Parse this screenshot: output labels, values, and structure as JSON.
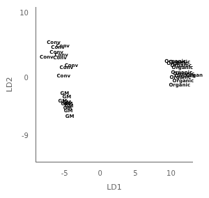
{
  "chart_data": {
    "type": "scatter",
    "marker": "text",
    "xlabel": "LD1",
    "ylabel": "LD2",
    "xlim": [
      -9,
      13
    ],
    "ylim": [
      -13,
      11
    ],
    "xticks": [
      -5,
      0,
      5,
      10
    ],
    "yticks": [
      -9,
      0,
      10
    ],
    "grid": false,
    "series": [
      {
        "labels": [
          "Conv",
          "Conv",
          "Conv",
          "Conv",
          "Conv",
          "Conv",
          "Conv",
          "Conv",
          "Conv",
          "Conv"
        ],
        "x": [
          -8.5,
          -7.5,
          -7.1,
          -6.9,
          -6.6,
          -6.4,
          -6.2,
          -5.7,
          -6.1,
          -5.0
        ],
        "values": [
          3.2,
          5.5,
          4.0,
          4.7,
          3.1,
          3.6,
          4.9,
          1.6,
          0.3,
          1.9
        ]
      },
      {
        "labels": [
          "GM",
          "GM",
          "GM",
          "GM",
          "GM",
          "GM",
          "GM",
          "GM",
          "GM",
          "GM"
        ],
        "x": [
          -5.6,
          -5.3,
          -5.9,
          -5.5,
          -5.3,
          -5.1,
          -5.0,
          -5.2,
          -5.1,
          -4.9
        ],
        "values": [
          -2.4,
          -2.9,
          -3.6,
          -4.0,
          -3.8,
          -4.0,
          -4.3,
          -4.6,
          -5.1,
          -5.9
        ]
      },
      {
        "labels": [
          "Organic",
          "Organic",
          "Organic",
          "Organic",
          "Organic",
          "Organic",
          "Organic",
          "Organic",
          "Organic",
          "Organic",
          "Organic",
          "Organ"
        ],
        "x": [
          9.1,
          9.4,
          9.7,
          9.9,
          10.1,
          10.0,
          10.3,
          9.8,
          10.2,
          9.7,
          10.5,
          12.1
        ],
        "values": [
          2.6,
          2.3,
          2.5,
          1.9,
          1.6,
          0.9,
          0.6,
          0.1,
          -0.4,
          -1.1,
          0.3,
          0.4
        ]
      }
    ]
  }
}
